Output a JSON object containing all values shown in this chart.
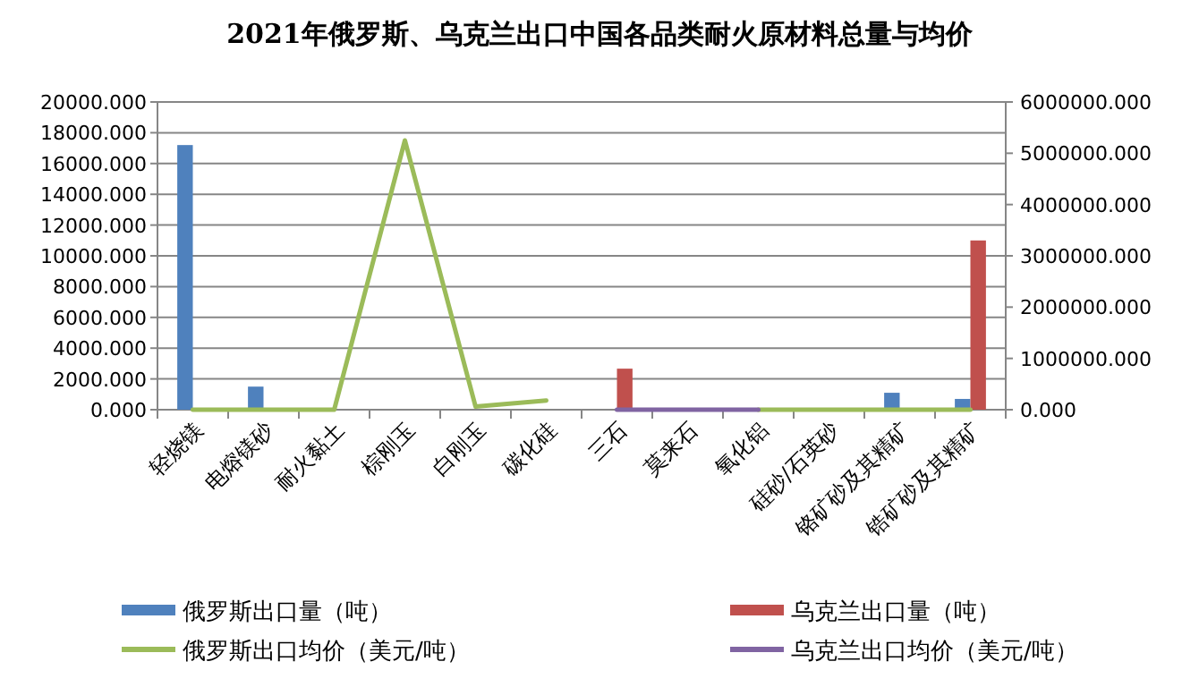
{
  "chart_data": {
    "type": "bar",
    "title": "2021年俄罗斯、乌克兰出口中国各品类耐火原材料总量与均价",
    "categories": [
      "轻烧镁",
      "电熔镁砂",
      "耐火黏土",
      "棕刚玉",
      "白刚玉",
      "碳化硅",
      "三石",
      "莫来石",
      "氧化铝",
      "硅砂/石英砂",
      "铬矿砂及其精矿",
      "锆矿砂及其精矿"
    ],
    "series": [
      {
        "name": "俄罗斯出口量（吨）",
        "color": "#4f81bd",
        "values": [
          17200,
          1500,
          null,
          null,
          null,
          null,
          null,
          null,
          null,
          null,
          1100,
          700
        ]
      },
      {
        "name": "乌克兰出口量（吨）",
        "axis": "y2",
        "color": "#c0504d",
        "values": [
          null,
          null,
          null,
          null,
          null,
          null,
          800000,
          null,
          null,
          null,
          null,
          3300000
        ]
      },
      {
        "name": "俄罗斯出口均价（美元/吨）",
        "type": "line",
        "color": "#9bbb59",
        "values": [
          0,
          0,
          0,
          17500,
          200,
          600,
          null,
          null,
          0,
          0,
          0,
          0
        ]
      },
      {
        "name": "乌克兰出口均价（美元/吨）",
        "type": "line",
        "axis": "y2",
        "color": "#8064a2",
        "values": [
          null,
          null,
          null,
          null,
          null,
          null,
          0,
          0,
          0,
          null,
          null,
          null
        ]
      }
    ],
    "ylim": [
      0,
      20000
    ],
    "yticks": [
      {
        "value": 0,
        "label": "0.000"
      },
      {
        "value": 2000,
        "label": "2000.000"
      },
      {
        "value": 4000,
        "label": "4000.000"
      },
      {
        "value": 6000,
        "label": "6000.000"
      },
      {
        "value": 8000,
        "label": "8000.000"
      },
      {
        "value": 10000,
        "label": "10000.000"
      },
      {
        "value": 12000,
        "label": "12000.000"
      },
      {
        "value": 14000,
        "label": "14000.000"
      },
      {
        "value": 16000,
        "label": "16000.000"
      },
      {
        "value": 18000,
        "label": "18000.000"
      },
      {
        "value": 20000,
        "label": "20000.000"
      }
    ],
    "y2lim": [
      0,
      6000000
    ],
    "y2ticks": [
      {
        "value": 0,
        "label": "0.000"
      },
      {
        "value": 1000000,
        "label": "1000000.000"
      },
      {
        "value": 2000000,
        "label": "2000000.000"
      },
      {
        "value": 3000000,
        "label": "3000000.000"
      },
      {
        "value": 4000000,
        "label": "4000000.000"
      },
      {
        "value": 5000000,
        "label": "5000000.000"
      },
      {
        "value": 6000000,
        "label": "6000000.000"
      }
    ],
    "grid": "y",
    "legend": "bottom"
  }
}
